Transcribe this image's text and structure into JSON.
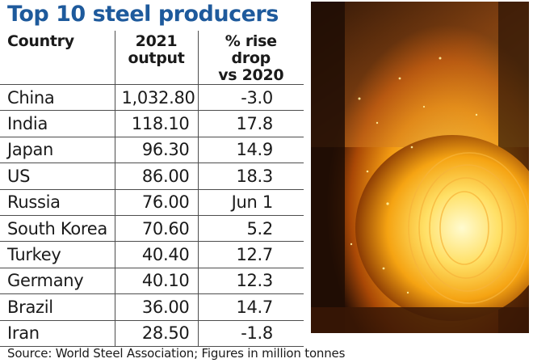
{
  "title": "Top 10 steel producers",
  "source": "Source: World Steel Association; Figures in million tonnes",
  "colors": {
    "title": "#1e5a9c",
    "grid": "#4d4d4d",
    "text": "#1a1a1a"
  },
  "chart_data": {
    "type": "table",
    "title": "Top 10 steel producers",
    "columns": [
      "Country",
      "2021 output",
      "% rise drop vs 2020"
    ],
    "header_lines": [
      [
        "Country"
      ],
      [
        "2021",
        "output"
      ],
      [
        "% rise drop",
        "vs 2020"
      ]
    ],
    "rows": [
      {
        "country": "China",
        "output": "1,032.80",
        "change": "-3.0"
      },
      {
        "country": "India",
        "output": "118.10",
        "change": "17.8"
      },
      {
        "country": "Japan",
        "output": "96.30",
        "change": "14.9"
      },
      {
        "country": "US",
        "output": "86.00",
        "change": "18.3"
      },
      {
        "country": "Russia",
        "output": "76.00",
        "change": "Jun 1"
      },
      {
        "country": "South Korea",
        "output": "70.60",
        "change": "5.2"
      },
      {
        "country": "Turkey",
        "output": "40.40",
        "change": "12.7"
      },
      {
        "country": "Germany",
        "output": "40.10",
        "change": "12.3"
      },
      {
        "country": "Brazil",
        "output": "36.00",
        "change": "14.7"
      },
      {
        "country": "Iran",
        "output": "28.50",
        "change": "-1.8"
      }
    ]
  }
}
